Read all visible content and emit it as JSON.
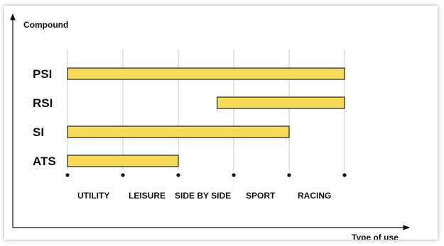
{
  "chart_data": {
    "type": "bar",
    "orientation": "horizontal-range",
    "title": "",
    "ylabel": "Compound",
    "xlabel": "Type of use",
    "categories": [
      "UTILITY",
      "LEISURE",
      "SIDE BY SIDE",
      "SPORT",
      "RACING"
    ],
    "series": [
      {
        "name": "PSI",
        "start": 0,
        "end": 5
      },
      {
        "name": "RSI",
        "start": 2.7,
        "end": 5
      },
      {
        "name": "SI",
        "start": 0,
        "end": 4
      },
      {
        "name": "ATS",
        "start": 0,
        "end": 2
      }
    ],
    "xlim": [
      0,
      5
    ],
    "grid": true,
    "bar_color": "#f4dc5a",
    "bar_edge_color": "#222222",
    "grid_color": "#c8c8c8"
  }
}
